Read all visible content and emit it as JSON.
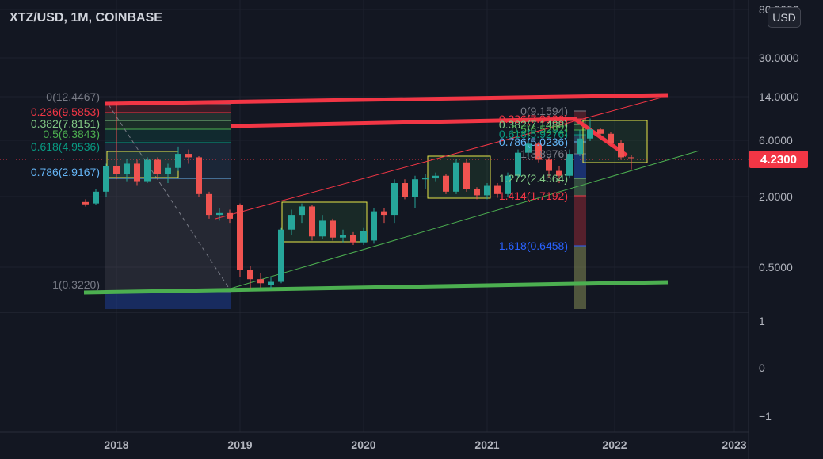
{
  "header": {
    "title": "XTZ/USD, 1M, COINBASE"
  },
  "currency_button": {
    "label": "USD"
  },
  "last_price": {
    "label": "4.2300",
    "color": "#f23645"
  },
  "colors": {
    "up": "#26a69a",
    "down": "#ef5350",
    "background": "#131722",
    "grid": "#1e222d"
  },
  "chart_data": {
    "type": "candlestick",
    "scale": "log",
    "ylim": [
      0.3,
      80
    ],
    "price_axis_ticks": [
      "80.0000",
      "30.0000",
      "14.0000",
      "6.0000",
      "2.0000",
      "0.5000"
    ],
    "indicator_axis_ticks": [
      "1",
      "0",
      "−1"
    ],
    "time_axis_ticks": [
      "2018",
      "2019",
      "2020",
      "2021",
      "2022",
      "2023"
    ],
    "fib_retracement_1": [
      {
        "label": "0(12.4467)",
        "color": "#787b86"
      },
      {
        "label": "0.236(9.5853)",
        "color": "#f23645"
      },
      {
        "label": "0.382(7.8151)",
        "color": "#81c784"
      },
      {
        "label": "0.5(6.3843)",
        "color": "#4caf50"
      },
      {
        "label": "0.618(4.9536)",
        "color": "#089981"
      },
      {
        "label": "0.786(2.9167)",
        "color": "#64b5f6"
      },
      {
        "label": "1(0.3220)",
        "color": "#787b86"
      }
    ],
    "fib_retracement_2": [
      {
        "label": "0(9.1594)",
        "color": "#787b86"
      },
      {
        "label": "0.236(7.9126)",
        "color": "#f23645"
      },
      {
        "label": "0.382(7.1488)",
        "color": "#81c784"
      },
      {
        "label": "0.5(6.5292)",
        "color": "#4caf50"
      },
      {
        "label": "0.618(5.9276)",
        "color": "#089981"
      },
      {
        "label": "0.786(5.0236)",
        "color": "#64b5f6"
      },
      {
        "label": "1(3.8976)",
        "color": "#787b86"
      },
      {
        "label": "1.272(2.4564)",
        "color": "#81c784"
      },
      {
        "label": "1.414(1.7192)",
        "color": "#f23645"
      },
      {
        "label": "1.618(0.6458)",
        "color": "#2962ff"
      }
    ],
    "candles": [
      [
        "2017-10",
        1.8,
        1.9,
        1.65,
        1.72
      ],
      [
        "2017-11",
        1.75,
        2.3,
        1.7,
        2.2
      ],
      [
        "2017-12",
        2.2,
        3.8,
        2.0,
        3.6
      ],
      [
        "2018-01",
        3.6,
        12.4,
        2.8,
        3.1
      ],
      [
        "2018-02",
        3.1,
        4.2,
        2.7,
        3.8
      ],
      [
        "2018-03",
        3.8,
        4.1,
        2.5,
        2.7
      ],
      [
        "2018-04",
        2.7,
        4.3,
        2.6,
        4.1
      ],
      [
        "2018-05",
        4.1,
        4.3,
        2.9,
        3.1
      ],
      [
        "2018-06",
        3.1,
        3.8,
        2.6,
        3.5
      ],
      [
        "2018-07",
        3.5,
        5.3,
        3.3,
        4.6
      ],
      [
        "2018-08",
        4.6,
        5.0,
        3.8,
        4.3
      ],
      [
        "2018-09",
        4.3,
        4.4,
        2.0,
        2.1
      ],
      [
        "2018-10",
        2.1,
        2.2,
        1.3,
        1.4
      ],
      [
        "2018-11",
        1.4,
        1.6,
        1.25,
        1.45
      ],
      [
        "2018-12",
        1.45,
        1.55,
        1.2,
        1.3
      ],
      [
        "2019-01",
        1.7,
        1.75,
        0.42,
        0.48
      ],
      [
        "2019-02",
        0.48,
        0.52,
        0.33,
        0.4
      ],
      [
        "2019-03",
        0.4,
        0.45,
        0.34,
        0.37
      ],
      [
        "2019-04",
        0.36,
        0.42,
        0.33,
        0.38
      ],
      [
        "2019-05",
        0.38,
        1.1,
        0.37,
        1.05
      ],
      [
        "2019-06",
        1.05,
        1.55,
        0.95,
        1.4
      ],
      [
        "2019-07",
        1.4,
        1.75,
        1.2,
        1.65
      ],
      [
        "2019-08",
        1.65,
        1.7,
        0.85,
        0.92
      ],
      [
        "2019-09",
        0.92,
        1.4,
        0.88,
        1.25
      ],
      [
        "2019-10",
        1.25,
        1.3,
        0.85,
        0.9
      ],
      [
        "2019-11",
        0.9,
        1.05,
        0.82,
        0.95
      ],
      [
        "2019-12",
        0.95,
        1.0,
        0.78,
        0.82
      ],
      [
        "2020-01",
        0.82,
        1.1,
        0.78,
        1.02
      ],
      [
        "2020-02",
        0.85,
        1.6,
        0.8,
        1.5
      ],
      [
        "2020-03",
        1.5,
        1.6,
        1.2,
        1.4
      ],
      [
        "2020-04",
        1.4,
        2.8,
        1.2,
        2.6
      ],
      [
        "2020-05",
        2.6,
        2.8,
        1.9,
        2.0
      ],
      [
        "2020-06",
        2.0,
        3.0,
        1.6,
        2.8
      ],
      [
        "2020-07",
        2.8,
        3.1,
        2.3,
        2.85
      ],
      [
        "2020-08",
        2.85,
        3.2,
        2.7,
        3.0
      ],
      [
        "2020-09",
        3.0,
        3.1,
        2.1,
        2.2
      ],
      [
        "2020-10",
        2.2,
        4.2,
        2.1,
        3.9
      ],
      [
        "2020-11",
        3.9,
        4.1,
        2.2,
        2.3
      ],
      [
        "2020-12",
        2.3,
        2.4,
        1.9,
        2.05
      ],
      [
        "2021-01",
        2.05,
        2.6,
        1.9,
        2.5
      ],
      [
        "2021-02",
        2.5,
        2.6,
        1.95,
        2.1
      ],
      [
        "2021-03",
        2.1,
        3.2,
        2.0,
        3.0
      ],
      [
        "2021-04",
        3.0,
        5.0,
        2.9,
        4.7
      ],
      [
        "2021-05",
        4.7,
        7.8,
        4.3,
        5.6
      ],
      [
        "2021-06",
        5.6,
        5.8,
        3.9,
        4.1
      ],
      [
        "2021-07",
        4.1,
        4.3,
        2.9,
        3.3
      ],
      [
        "2021-08",
        3.3,
        3.6,
        2.6,
        3.0
      ],
      [
        "2021-09",
        3.0,
        5.0,
        2.85,
        4.6
      ],
      [
        "2021-10",
        4.6,
        7.3,
        4.4,
        6.2
      ],
      [
        "2021-11",
        6.2,
        9.16,
        5.9,
        7.4
      ],
      [
        "2021-12",
        7.4,
        7.6,
        6.5,
        6.8
      ],
      [
        "2022-01",
        6.8,
        7.0,
        5.5,
        5.7
      ],
      [
        "2022-02",
        5.7,
        6.0,
        4.1,
        4.3
      ],
      [
        "2022-03",
        4.3,
        4.5,
        3.4,
        4.23
      ]
    ]
  }
}
